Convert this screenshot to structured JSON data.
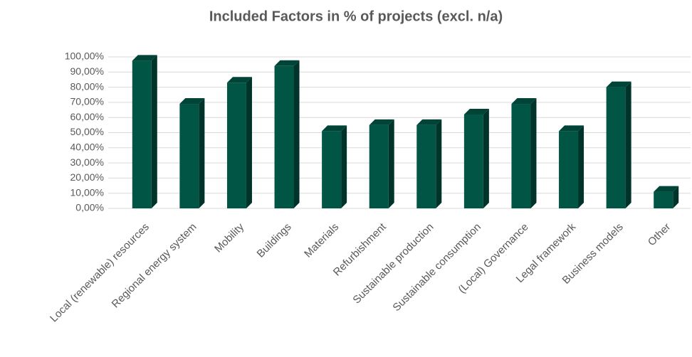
{
  "chart_data": {
    "type": "bar3d",
    "title": "Included Factors in % of projects (excl. n/a)",
    "categories": [
      "Local (renewable) resources",
      "Regional energy system",
      "Mobility",
      "Buildings",
      "Materials",
      "Refurbishment",
      "Sustainable production",
      "Sustainable consumption",
      "(Local) Governance",
      "Legal framework",
      "Business models",
      "Other"
    ],
    "values": [
      97.5,
      69,
      83,
      94,
      51,
      55,
      55,
      62,
      69,
      51,
      80,
      11
    ],
    "color": "#005545",
    "ylim": [
      0,
      100
    ],
    "yticks": [
      {
        "value": 0,
        "label": "0,00%"
      },
      {
        "value": 10,
        "label": "10,00%"
      },
      {
        "value": 20,
        "label": "20,00%"
      },
      {
        "value": 30,
        "label": "30,00%"
      },
      {
        "value": 40,
        "label": "40,00%"
      },
      {
        "value": 50,
        "label": "50,00%"
      },
      {
        "value": 60,
        "label": "60,00%"
      },
      {
        "value": 70,
        "label": "70,00%"
      },
      {
        "value": 80,
        "label": "80,00%"
      },
      {
        "value": 90,
        "label": "90,00%"
      },
      {
        "value": 100,
        "label": "100,00%"
      }
    ],
    "grid": true
  }
}
